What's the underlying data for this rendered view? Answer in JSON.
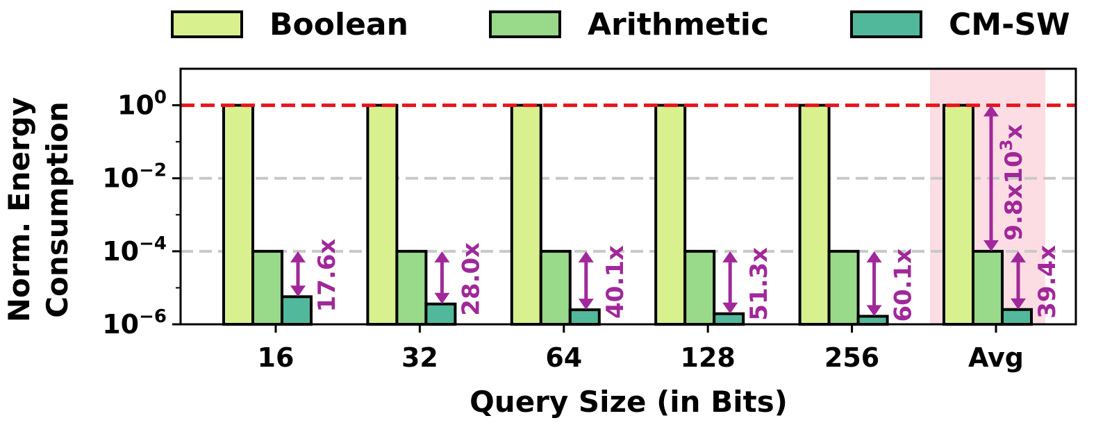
{
  "chart_data": {
    "type": "bar",
    "title": "",
    "xlabel": "Query Size (in Bits)",
    "ylabel_lines": [
      "Norm. Energy",
      "Consumption"
    ],
    "yscale": "log",
    "ylim": [
      1e-06,
      10
    ],
    "yticks": [
      {
        "exp": -6,
        "base": "10",
        "sup": "−6"
      },
      {
        "exp": -4,
        "base": "10",
        "sup": "−4"
      },
      {
        "exp": -2,
        "base": "10",
        "sup": "−2"
      },
      {
        "exp": 0,
        "base": "10",
        "sup": "0"
      }
    ],
    "categories": [
      "16",
      "32",
      "64",
      "128",
      "256",
      "Avg"
    ],
    "series": [
      {
        "name": "Boolean",
        "color": "#d9f08f",
        "values": [
          1,
          1,
          1,
          1,
          1,
          1
        ]
      },
      {
        "name": "Arithmetic",
        "color": "#98d98a",
        "values": [
          0.0001,
          0.0001,
          0.0001,
          0.0001,
          0.0001,
          0.0001
        ]
      },
      {
        "name": "CM-SW",
        "color": "#52b89c",
        "values": [
          5.7e-06,
          3.6e-06,
          2.5e-06,
          1.95e-06,
          1.66e-06,
          2.54e-06
        ]
      }
    ],
    "legend_position": "top",
    "reference_line": {
      "value": 1,
      "color": "#e8141a"
    },
    "grid_lines": [
      0.01,
      0.0001
    ],
    "highlight_category": {
      "category": "Avg",
      "color": "#fddde4"
    },
    "annotation_color": "#a0289a",
    "annotations": [
      {
        "category": "16",
        "from": 0.0001,
        "to": 5.7e-06,
        "label": "17.6x"
      },
      {
        "category": "32",
        "from": 0.0001,
        "to": 3.6e-06,
        "label": "28.0x"
      },
      {
        "category": "64",
        "from": 0.0001,
        "to": 2.5e-06,
        "label": "40.1x"
      },
      {
        "category": "128",
        "from": 0.0001,
        "to": 1.95e-06,
        "label": "51.3x"
      },
      {
        "category": "256",
        "from": 0.0001,
        "to": 1.66e-06,
        "label": "60.1x"
      },
      {
        "category": "Avg",
        "from": 0.0001,
        "to": 2.54e-06,
        "label": "39.4x"
      },
      {
        "category": "Avg",
        "from": 1,
        "to": 0.0001,
        "label": "9.8x10",
        "label_sup": "3",
        "label_suffix": "x",
        "between": "boolean-arithmetic"
      }
    ]
  }
}
